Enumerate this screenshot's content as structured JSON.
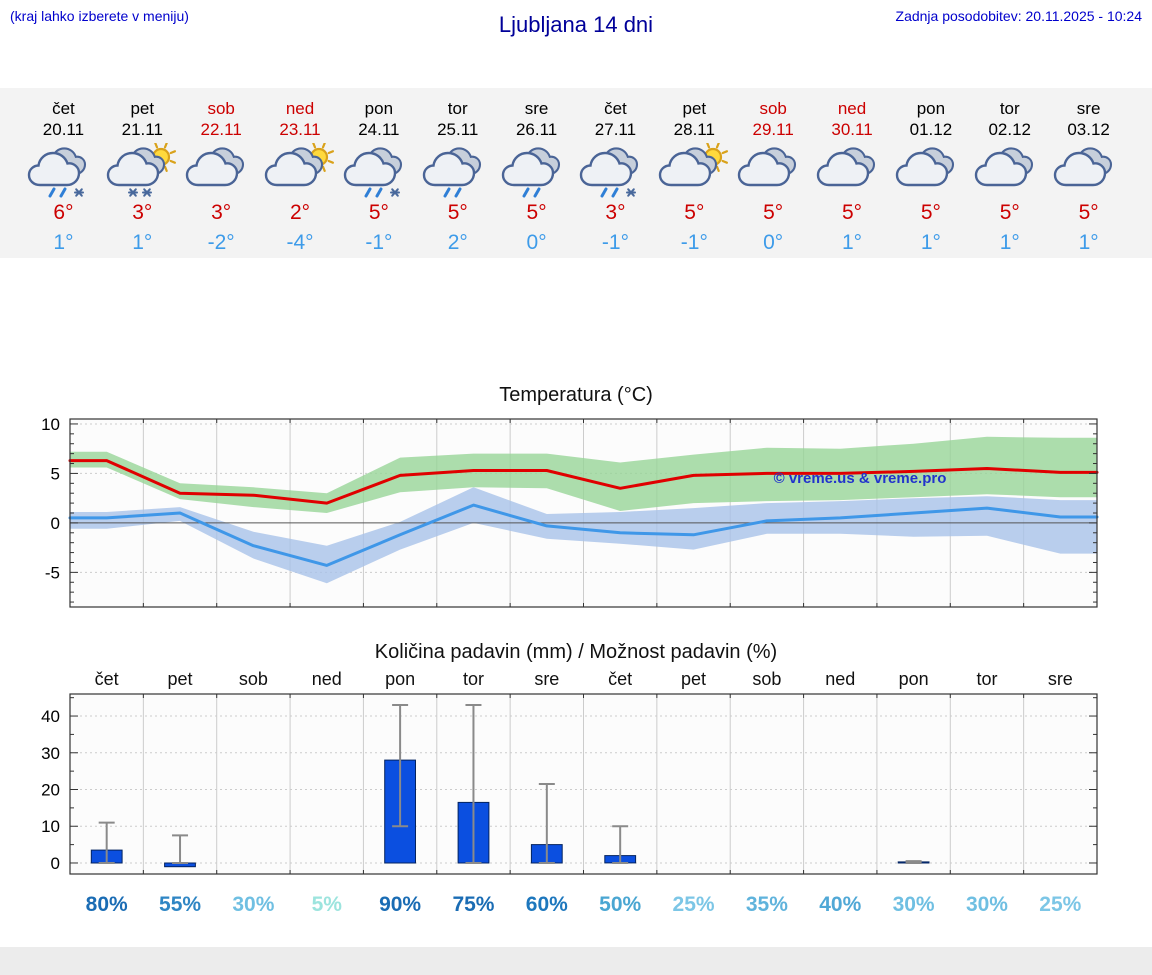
{
  "header": {
    "left_note": "(kraj lahko izberete v meniju)",
    "title": "Ljubljana 14 dni",
    "last_update": "Zadnja posodobitev: 20.11.2025 - 10:24"
  },
  "colors": {
    "link_blue": "#0000cc",
    "title_blue": "#000099",
    "red": "#cc0000",
    "low_blue": "#3d9be9",
    "bar_blue": "#0b4fe0",
    "max_line_red": "#e00000",
    "min_line_blue": "#3f97e8",
    "max_band_green": "#97d497",
    "min_band_blue": "#a8c2e8"
  },
  "forecast_days": [
    {
      "name": "čet",
      "date": "20.11",
      "holiday": false,
      "icon": "rain-snow",
      "high": "6°",
      "low": "1°"
    },
    {
      "name": "pet",
      "date": "21.11",
      "holiday": false,
      "icon": "sun-snow",
      "high": "3°",
      "low": "1°"
    },
    {
      "name": "sob",
      "date": "22.11",
      "holiday": true,
      "icon": "cloudy",
      "high": "3°",
      "low": "-2°"
    },
    {
      "name": "ned",
      "date": "23.11",
      "holiday": true,
      "icon": "partly-sunny",
      "high": "2°",
      "low": "-4°"
    },
    {
      "name": "pon",
      "date": "24.11",
      "holiday": false,
      "icon": "rain-snow",
      "high": "5°",
      "low": "-1°"
    },
    {
      "name": "tor",
      "date": "25.11",
      "holiday": false,
      "icon": "rain",
      "high": "5°",
      "low": "2°"
    },
    {
      "name": "sre",
      "date": "26.11",
      "holiday": false,
      "icon": "rain",
      "high": "5°",
      "low": "0°"
    },
    {
      "name": "čet",
      "date": "27.11",
      "holiday": false,
      "icon": "rain-snow",
      "high": "3°",
      "low": "-1°"
    },
    {
      "name": "pet",
      "date": "28.11",
      "holiday": false,
      "icon": "partly-sunny",
      "high": "5°",
      "low": "-1°"
    },
    {
      "name": "sob",
      "date": "29.11",
      "holiday": true,
      "icon": "cloudy",
      "high": "5°",
      "low": "0°"
    },
    {
      "name": "ned",
      "date": "30.11",
      "holiday": true,
      "icon": "cloudy",
      "high": "5°",
      "low": "1°"
    },
    {
      "name": "pon",
      "date": "01.12",
      "holiday": false,
      "icon": "cloudy",
      "high": "5°",
      "low": "1°"
    },
    {
      "name": "tor",
      "date": "02.12",
      "holiday": false,
      "icon": "cloudy",
      "high": "5°",
      "low": "1°"
    },
    {
      "name": "sre",
      "date": "03.12",
      "holiday": false,
      "icon": "cloudy",
      "high": "5°",
      "low": "1°"
    }
  ],
  "chart_data": [
    {
      "type": "line",
      "title": "Temperatura (°C)",
      "x_categories": [
        "čet",
        "pet",
        "sob",
        "ned",
        "pon",
        "tor",
        "sre",
        "čet",
        "pet",
        "sob",
        "ned",
        "pon",
        "tor",
        "sre"
      ],
      "ylim": [
        -8.5,
        10.5
      ],
      "yticks": [
        -5,
        0,
        5,
        10
      ],
      "grid": true,
      "legend": "none",
      "watermark": "© vreme.us & vreme.pro",
      "series": [
        {
          "name": "max-temp",
          "type": "line",
          "color": "#e00000",
          "values": [
            6.3,
            3.0,
            2.8,
            2.0,
            4.8,
            5.3,
            5.3,
            3.5,
            4.8,
            5.0,
            5.0,
            5.2,
            5.5,
            5.1
          ]
        },
        {
          "name": "min-temp",
          "type": "line",
          "color": "#3f97e8",
          "values": [
            0.5,
            1.0,
            -2.3,
            -4.3,
            -1.2,
            1.8,
            -0.3,
            -1.0,
            -1.2,
            0.2,
            0.5,
            1.0,
            1.5,
            0.6
          ]
        },
        {
          "name": "max-range",
          "type": "band",
          "color": "#97d497",
          "upper": [
            7.2,
            4.0,
            3.6,
            3.0,
            6.6,
            7.0,
            7.0,
            6.1,
            6.9,
            7.6,
            7.5,
            8.0,
            8.7,
            8.6
          ],
          "lower": [
            5.6,
            2.4,
            1.6,
            1.0,
            3.1,
            3.6,
            3.5,
            1.2,
            2.0,
            2.2,
            2.3,
            2.6,
            2.9,
            2.6
          ]
        },
        {
          "name": "min-range",
          "type": "band",
          "color": "#a8c2e8",
          "upper": [
            1.1,
            1.6,
            -0.9,
            -2.3,
            0.1,
            3.6,
            0.9,
            1.1,
            1.5,
            2.0,
            2.2,
            2.5,
            2.7,
            2.3
          ],
          "lower": [
            -0.6,
            0.2,
            -3.6,
            -6.1,
            -2.7,
            0.0,
            -1.6,
            -2.1,
            -2.7,
            -1.1,
            -1.1,
            -1.4,
            -1.3,
            -3.1
          ]
        }
      ]
    },
    {
      "type": "bar",
      "title": "Količina padavin (mm) / Možnost padavin (%)",
      "categories": [
        "čet",
        "pet",
        "sob",
        "ned",
        "pon",
        "tor",
        "sre",
        "čet",
        "pet",
        "sob",
        "ned",
        "pon",
        "tor",
        "sre"
      ],
      "ylim": [
        -3,
        46
      ],
      "yticks": [
        0,
        10,
        20,
        30,
        40
      ],
      "grid": true,
      "bar_color": "#0b4fe0",
      "values": [
        3.5,
        -1,
        0,
        0,
        28,
        16.5,
        5,
        2,
        0,
        0,
        0,
        0.3,
        0,
        0
      ],
      "error_low": [
        0,
        0,
        0,
        0,
        10,
        0,
        0,
        0,
        0,
        0,
        0,
        0,
        0,
        0
      ],
      "error_high": [
        11,
        7.5,
        0,
        0,
        43,
        43,
        21.5,
        10,
        0,
        0,
        0,
        0.5,
        0,
        0
      ],
      "probabilities": [
        {
          "label": "80%",
          "color": "#1a6cb4"
        },
        {
          "label": "55%",
          "color": "#2f86c4"
        },
        {
          "label": "30%",
          "color": "#6fbfe2"
        },
        {
          "label": "5%",
          "color": "#9ce4de"
        },
        {
          "label": "90%",
          "color": "#1a6cb4"
        },
        {
          "label": "75%",
          "color": "#1a6cb4"
        },
        {
          "label": "60%",
          "color": "#1d77bd"
        },
        {
          "label": "50%",
          "color": "#4aa6d2"
        },
        {
          "label": "25%",
          "color": "#7cc6e6"
        },
        {
          "label": "35%",
          "color": "#5fb3dc"
        },
        {
          "label": "40%",
          "color": "#50a8d6"
        },
        {
          "label": "30%",
          "color": "#6fbfe2"
        },
        {
          "label": "30%",
          "color": "#6fbfe2"
        },
        {
          "label": "25%",
          "color": "#7cc6e6"
        }
      ]
    }
  ]
}
